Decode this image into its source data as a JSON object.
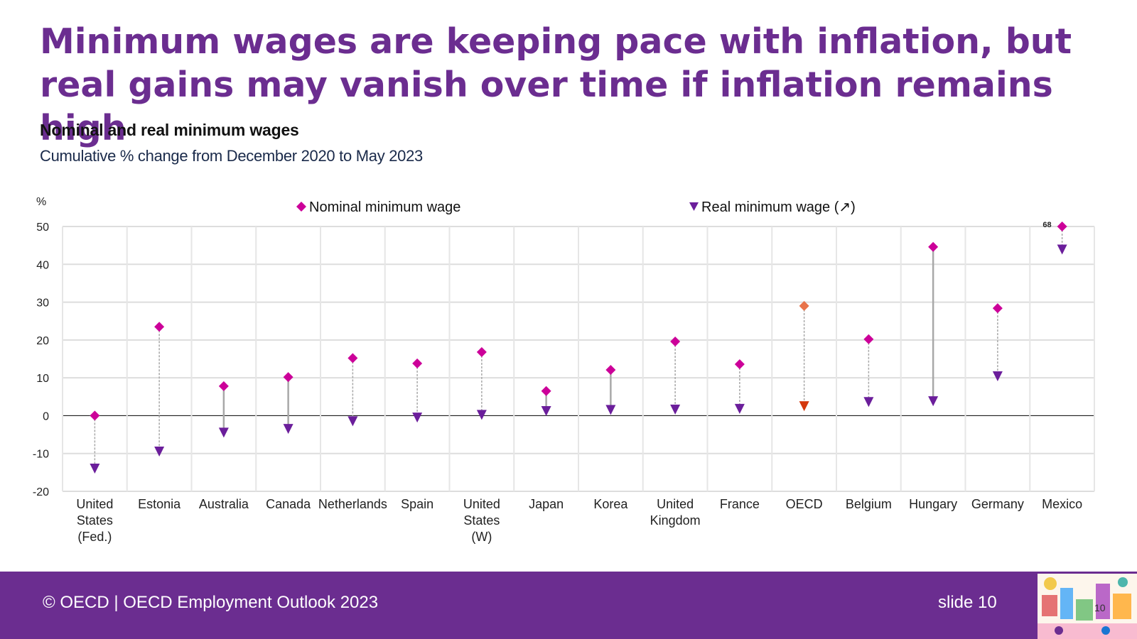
{
  "title": "Minimum wages are keeping pace with inflation, but real gains may vanish over time if inflation remains high",
  "subtitle": "Nominal and real minimum wages",
  "subtitle2": "Cumulative % change from December 2020 to May 2023",
  "footer": {
    "left": "© OECD | OECD Employment Outlook 2023",
    "right": "slide 10",
    "small_number": "10"
  },
  "colors": {
    "brand_purple": "#6b2d90",
    "nominal": "#cc0099",
    "real": "#6b1e9b",
    "oecd_nominal": "#e8734a",
    "oecd_real": "#d4380d"
  },
  "chart_data": {
    "type": "scatter",
    "ylabel": "%",
    "ylim": [
      -20,
      50
    ],
    "yticks": [
      50,
      40,
      30,
      20,
      10,
      0,
      -10,
      -20
    ],
    "grid": true,
    "legend_position": "top",
    "categories": [
      "United States (Fed.)",
      "Estonia",
      "Australia",
      "Canada",
      "Netherlands",
      "Spain",
      "United States (W)",
      "Japan",
      "Korea",
      "United Kingdom",
      "France",
      "OECD",
      "Belgium",
      "Hungary",
      "Germany",
      "Mexico"
    ],
    "category_lines": [
      [
        "United",
        "States",
        "(Fed.)"
      ],
      [
        "Estonia"
      ],
      [
        "Australia"
      ],
      [
        "Canada"
      ],
      [
        "Netherlands"
      ],
      [
        "Spain"
      ],
      [
        "United",
        "States",
        "(W)"
      ],
      [
        "Japan"
      ],
      [
        "Korea"
      ],
      [
        "United",
        "Kingdom"
      ],
      [
        "France"
      ],
      [
        "OECD"
      ],
      [
        "Belgium"
      ],
      [
        "Hungary"
      ],
      [
        "Germany"
      ],
      [
        "Mexico"
      ]
    ],
    "series": [
      {
        "name": "Nominal minimum wage",
        "marker": "diamond",
        "values": [
          0,
          23.5,
          7.8,
          10.2,
          15.2,
          13.8,
          16.8,
          6.5,
          12.1,
          19.6,
          13.6,
          29.0,
          20.2,
          44.6,
          28.4,
          50
        ]
      },
      {
        "name": "Real minimum wage (↗)",
        "marker": "triangle-down",
        "values": [
          -14,
          -9.5,
          -4.5,
          -3.5,
          -1.5,
          -0.5,
          0.2,
          1.2,
          1.5,
          1.6,
          1.8,
          2.5,
          3.6,
          3.8,
          10.4,
          43.9
        ]
      }
    ],
    "connector_style": [
      "dashed",
      "dashed",
      "solid",
      "solid",
      "dashed",
      "dashed",
      "dashed",
      "solid",
      "solid",
      "dashed",
      "dashed",
      "dashed",
      "dashed",
      "solid",
      "dashed",
      "dashed"
    ],
    "highlight_category": "OECD",
    "annotations": [
      {
        "category": "Mexico",
        "text": "68",
        "note": "nominal value beyond axis"
      }
    ]
  }
}
